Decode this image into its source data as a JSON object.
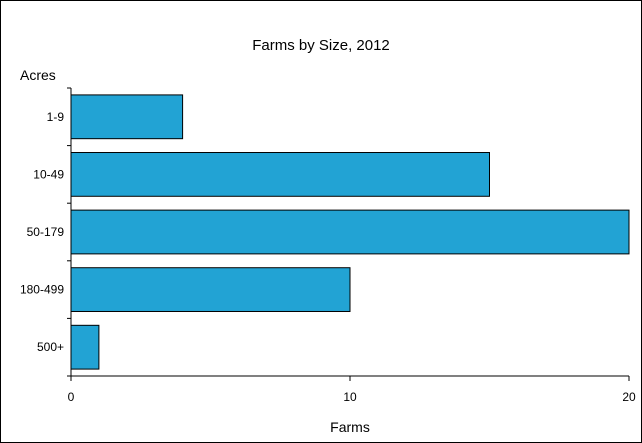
{
  "chart_data": {
    "type": "bar",
    "orientation": "horizontal",
    "title": "Farms by Size, 2012",
    "xlabel": "Farms",
    "ylabel": "Acres",
    "categories": [
      "1-9",
      "10-49",
      "50-179",
      "180-499",
      "500+"
    ],
    "values": [
      4,
      15,
      20,
      10,
      1
    ],
    "xlim": [
      0,
      20
    ],
    "xticks": [
      0,
      10,
      20
    ],
    "grid": false,
    "legend": "none",
    "bar_color": "#22a3d4",
    "bar_edge_color": "#000000"
  }
}
